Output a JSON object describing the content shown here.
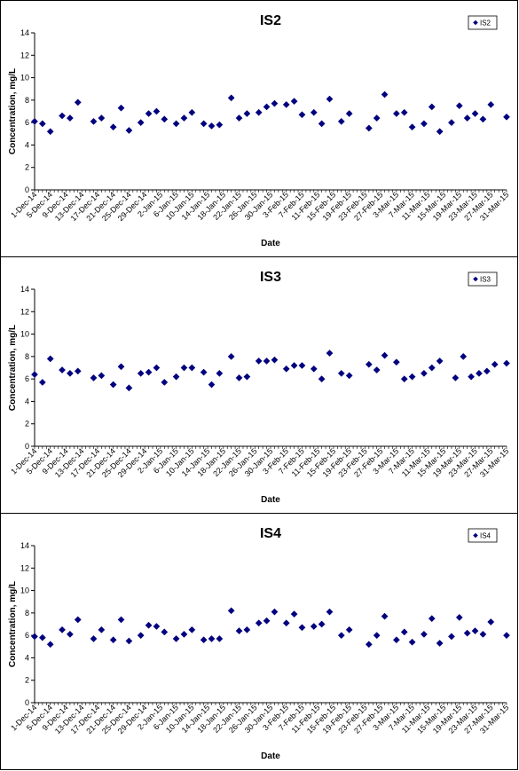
{
  "chart_data": [
    {
      "type": "scatter",
      "title": "IS2",
      "xlabel": "Date",
      "ylabel": "Concentration, mg/L",
      "ylim": [
        0,
        14
      ],
      "yticks": [
        0,
        2,
        4,
        6,
        8,
        10,
        12,
        14
      ],
      "xlim": [
        "2014-12-01",
        "2015-03-31"
      ],
      "xticks": [
        "1-Dec-14",
        "5-Dec-14",
        "9-Dec-14",
        "13-Dec-14",
        "17-Dec-14",
        "21-Dec-14",
        "25-Dec-14",
        "29-Dec-14",
        "2-Jan-15",
        "6-Jan-15",
        "10-Jan-15",
        "14-Jan-15",
        "18-Jan-15",
        "22-Jan-15",
        "26-Jan-15",
        "30-Jan-15",
        "3-Feb-15",
        "7-Feb-15",
        "11-Feb-15",
        "15-Feb-15",
        "19-Feb-15",
        "23-Feb-15",
        "27-Feb-15",
        "3-Mar-15",
        "7-Mar-15",
        "11-Mar-15",
        "15-Mar-15",
        "19-Mar-15",
        "23-Mar-15",
        "27-Mar-15",
        "31-Mar-15"
      ],
      "legend_position": "top-right",
      "grid": false,
      "series": [
        {
          "name": "IS2",
          "color": "#00007f",
          "marker": "diamond",
          "points": [
            [
              "2014-12-01",
              6.1
            ],
            [
              "2014-12-03",
              5.9
            ],
            [
              "2014-12-05",
              5.2
            ],
            [
              "2014-12-08",
              6.6
            ],
            [
              "2014-12-10",
              6.4
            ],
            [
              "2014-12-12",
              7.8
            ],
            [
              "2014-12-16",
              6.1
            ],
            [
              "2014-12-18",
              6.4
            ],
            [
              "2014-12-21",
              5.6
            ],
            [
              "2014-12-23",
              7.3
            ],
            [
              "2014-12-25",
              5.3
            ],
            [
              "2014-12-28",
              6.0
            ],
            [
              "2014-12-30",
              6.8
            ],
            [
              "2015-01-01",
              7.0
            ],
            [
              "2015-01-03",
              6.3
            ],
            [
              "2015-01-06",
              5.9
            ],
            [
              "2015-01-08",
              6.4
            ],
            [
              "2015-01-10",
              6.9
            ],
            [
              "2015-01-13",
              5.9
            ],
            [
              "2015-01-15",
              5.7
            ],
            [
              "2015-01-17",
              5.8
            ],
            [
              "2015-01-20",
              8.2
            ],
            [
              "2015-01-22",
              6.4
            ],
            [
              "2015-01-24",
              6.8
            ],
            [
              "2015-01-27",
              6.9
            ],
            [
              "2015-01-29",
              7.4
            ],
            [
              "2015-01-31",
              7.7
            ],
            [
              "2015-02-03",
              7.6
            ],
            [
              "2015-02-05",
              7.9
            ],
            [
              "2015-02-07",
              6.7
            ],
            [
              "2015-02-10",
              6.9
            ],
            [
              "2015-02-12",
              5.9
            ],
            [
              "2015-02-14",
              8.1
            ],
            [
              "2015-02-17",
              6.1
            ],
            [
              "2015-02-19",
              6.8
            ],
            [
              "2015-02-24",
              5.5
            ],
            [
              "2015-02-26",
              6.4
            ],
            [
              "2015-02-28",
              8.5
            ],
            [
              "2015-03-03",
              6.8
            ],
            [
              "2015-03-05",
              6.9
            ],
            [
              "2015-03-07",
              5.6
            ],
            [
              "2015-03-10",
              5.9
            ],
            [
              "2015-03-12",
              7.4
            ],
            [
              "2015-03-14",
              5.2
            ],
            [
              "2015-03-17",
              6.0
            ],
            [
              "2015-03-19",
              7.5
            ],
            [
              "2015-03-21",
              6.4
            ],
            [
              "2015-03-23",
              6.8
            ],
            [
              "2015-03-25",
              6.3
            ],
            [
              "2015-03-27",
              7.6
            ],
            [
              "2015-03-31",
              6.5
            ]
          ]
        }
      ]
    },
    {
      "type": "scatter",
      "title": "IS3",
      "xlabel": "Date",
      "ylabel": "Concentration, mg/L",
      "ylim": [
        0,
        14
      ],
      "yticks": [
        0,
        2,
        4,
        6,
        8,
        10,
        12,
        14
      ],
      "xlim": [
        "2014-12-01",
        "2015-03-31"
      ],
      "xticks": [
        "1-Dec-14",
        "5-Dec-14",
        "9-Dec-14",
        "13-Dec-14",
        "17-Dec-14",
        "21-Dec-14",
        "25-Dec-14",
        "29-Dec-14",
        "2-Jan-15",
        "6-Jan-15",
        "10-Jan-15",
        "14-Jan-15",
        "18-Jan-15",
        "22-Jan-15",
        "26-Jan-15",
        "30-Jan-15",
        "3-Feb-15",
        "7-Feb-15",
        "11-Feb-15",
        "15-Feb-15",
        "19-Feb-15",
        "23-Feb-15",
        "27-Feb-15",
        "3-Mar-15",
        "7-Mar-15",
        "11-Mar-15",
        "15-Mar-15",
        "19-Mar-15",
        "23-Mar-15",
        "27-Mar-15",
        "31-Mar-15"
      ],
      "legend_position": "top-right",
      "grid": false,
      "series": [
        {
          "name": "IS3",
          "color": "#00007f",
          "marker": "diamond",
          "points": [
            [
              "2014-12-01",
              6.4
            ],
            [
              "2014-12-03",
              5.7
            ],
            [
              "2014-12-05",
              7.8
            ],
            [
              "2014-12-08",
              6.8
            ],
            [
              "2014-12-10",
              6.5
            ],
            [
              "2014-12-12",
              6.7
            ],
            [
              "2014-12-16",
              6.1
            ],
            [
              "2014-12-18",
              6.3
            ],
            [
              "2014-12-21",
              5.5
            ],
            [
              "2014-12-23",
              7.1
            ],
            [
              "2014-12-25",
              5.2
            ],
            [
              "2014-12-28",
              6.5
            ],
            [
              "2014-12-30",
              6.6
            ],
            [
              "2015-01-01",
              7.0
            ],
            [
              "2015-01-03",
              5.7
            ],
            [
              "2015-01-06",
              6.2
            ],
            [
              "2015-01-08",
              7.0
            ],
            [
              "2015-01-10",
              7.0
            ],
            [
              "2015-01-13",
              6.6
            ],
            [
              "2015-01-15",
              5.5
            ],
            [
              "2015-01-17",
              6.5
            ],
            [
              "2015-01-20",
              8.0
            ],
            [
              "2015-01-22",
              6.1
            ],
            [
              "2015-01-24",
              6.2
            ],
            [
              "2015-01-27",
              7.6
            ],
            [
              "2015-01-29",
              7.6
            ],
            [
              "2015-01-31",
              7.7
            ],
            [
              "2015-02-03",
              6.9
            ],
            [
              "2015-02-05",
              7.2
            ],
            [
              "2015-02-07",
              7.2
            ],
            [
              "2015-02-10",
              6.9
            ],
            [
              "2015-02-12",
              6.0
            ],
            [
              "2015-02-14",
              8.3
            ],
            [
              "2015-02-17",
              6.5
            ],
            [
              "2015-02-19",
              6.3
            ],
            [
              "2015-02-24",
              7.3
            ],
            [
              "2015-02-26",
              6.8
            ],
            [
              "2015-02-28",
              8.1
            ],
            [
              "2015-03-03",
              7.5
            ],
            [
              "2015-03-05",
              6.0
            ],
            [
              "2015-03-07",
              6.2
            ],
            [
              "2015-03-10",
              6.5
            ],
            [
              "2015-03-12",
              7.0
            ],
            [
              "2015-03-14",
              7.6
            ],
            [
              "2015-03-18",
              6.1
            ],
            [
              "2015-03-20",
              8.0
            ],
            [
              "2015-03-22",
              6.2
            ],
            [
              "2015-03-24",
              6.5
            ],
            [
              "2015-03-26",
              6.7
            ],
            [
              "2015-03-28",
              7.3
            ],
            [
              "2015-03-31",
              7.4
            ]
          ]
        }
      ]
    },
    {
      "type": "scatter",
      "title": "IS4",
      "xlabel": "Date",
      "ylabel": "Concentration, mg/L",
      "ylim": [
        0,
        14
      ],
      "yticks": [
        0,
        2,
        4,
        6,
        8,
        10,
        12,
        14
      ],
      "xlim": [
        "2014-12-01",
        "2015-03-31"
      ],
      "xticks": [
        "1-Dec-14",
        "5-Dec-14",
        "9-Dec-14",
        "13-Dec-14",
        "17-Dec-14",
        "21-Dec-14",
        "25-Dec-14",
        "29-Dec-14",
        "2-Jan-15",
        "6-Jan-15",
        "10-Jan-15",
        "14-Jan-15",
        "18-Jan-15",
        "22-Jan-15",
        "26-Jan-15",
        "30-Jan-15",
        "3-Feb-15",
        "7-Feb-15",
        "11-Feb-15",
        "15-Feb-15",
        "19-Feb-15",
        "23-Feb-15",
        "27-Feb-15",
        "3-Mar-15",
        "7-Mar-15",
        "11-Mar-15",
        "15-Mar-15",
        "19-Mar-15",
        "23-Mar-15",
        "27-Mar-15",
        "31-Mar-15"
      ],
      "legend_position": "top-right",
      "grid": false,
      "series": [
        {
          "name": "IS4",
          "color": "#00007f",
          "marker": "diamond",
          "points": [
            [
              "2014-12-01",
              5.9
            ],
            [
              "2014-12-03",
              5.8
            ],
            [
              "2014-12-05",
              5.2
            ],
            [
              "2014-12-08",
              6.5
            ],
            [
              "2014-12-10",
              6.1
            ],
            [
              "2014-12-12",
              7.4
            ],
            [
              "2014-12-16",
              5.7
            ],
            [
              "2014-12-18",
              6.5
            ],
            [
              "2014-12-21",
              5.6
            ],
            [
              "2014-12-23",
              7.4
            ],
            [
              "2014-12-25",
              5.5
            ],
            [
              "2014-12-28",
              6.0
            ],
            [
              "2014-12-30",
              6.9
            ],
            [
              "2015-01-01",
              6.8
            ],
            [
              "2015-01-03",
              6.3
            ],
            [
              "2015-01-06",
              5.7
            ],
            [
              "2015-01-08",
              6.1
            ],
            [
              "2015-01-10",
              6.5
            ],
            [
              "2015-01-13",
              5.6
            ],
            [
              "2015-01-15",
              5.7
            ],
            [
              "2015-01-17",
              5.7
            ],
            [
              "2015-01-20",
              8.2
            ],
            [
              "2015-01-22",
              6.4
            ],
            [
              "2015-01-24",
              6.5
            ],
            [
              "2015-01-27",
              7.1
            ],
            [
              "2015-01-29",
              7.3
            ],
            [
              "2015-01-31",
              8.1
            ],
            [
              "2015-02-03",
              7.1
            ],
            [
              "2015-02-05",
              7.9
            ],
            [
              "2015-02-07",
              6.7
            ],
            [
              "2015-02-10",
              6.8
            ],
            [
              "2015-02-12",
              7.0
            ],
            [
              "2015-02-14",
              8.1
            ],
            [
              "2015-02-17",
              6.0
            ],
            [
              "2015-02-19",
              6.5
            ],
            [
              "2015-02-24",
              5.2
            ],
            [
              "2015-02-26",
              6.0
            ],
            [
              "2015-02-28",
              7.7
            ],
            [
              "2015-03-03",
              5.6
            ],
            [
              "2015-03-05",
              6.3
            ],
            [
              "2015-03-07",
              5.4
            ],
            [
              "2015-03-10",
              6.1
            ],
            [
              "2015-03-12",
              7.5
            ],
            [
              "2015-03-14",
              5.3
            ],
            [
              "2015-03-17",
              5.9
            ],
            [
              "2015-03-19",
              7.6
            ],
            [
              "2015-03-21",
              6.2
            ],
            [
              "2015-03-23",
              6.4
            ],
            [
              "2015-03-25",
              6.1
            ],
            [
              "2015-03-27",
              7.2
            ],
            [
              "2015-03-31",
              6.0
            ]
          ]
        }
      ]
    }
  ]
}
